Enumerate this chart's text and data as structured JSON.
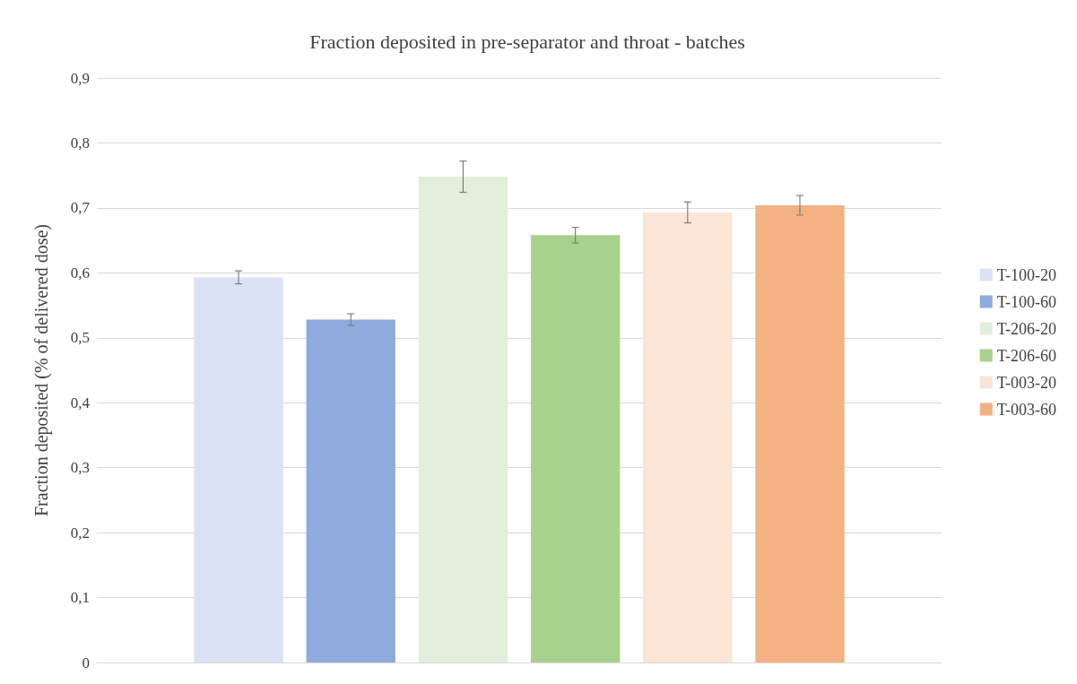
{
  "chart_data": {
    "type": "bar",
    "title": "Fraction deposited in pre-separator and throat - batches",
    "ylabel": "Fraction deposited (% of delivered dose)",
    "categories": [
      null
    ],
    "series": [
      {
        "name": "T-100-20",
        "color": "#dae3f3",
        "values": [
          0.593
        ],
        "errors": [
          0.01
        ]
      },
      {
        "name": "T-100-60",
        "color": "#8faadc",
        "values": [
          0.528
        ],
        "errors": [
          0.009
        ]
      },
      {
        "name": "T-206-20",
        "color": "#e2efda",
        "values": [
          0.748
        ],
        "errors": [
          0.024
        ]
      },
      {
        "name": "T-206-60",
        "color": "#a9d18e",
        "values": [
          0.658
        ],
        "errors": [
          0.012
        ]
      },
      {
        "name": "T-003-20",
        "color": "#fbe5d6",
        "values": [
          0.693
        ],
        "errors": [
          0.016
        ]
      },
      {
        "name": "T-003-60",
        "color": "#f4b183",
        "values": [
          0.704
        ],
        "errors": [
          0.015
        ]
      }
    ],
    "ylim": [
      0,
      0.9
    ],
    "yticks": [
      0,
      {
        "value": 0.1,
        "label": "0,1"
      },
      {
        "value": 0.2,
        "label": "0,2"
      },
      {
        "value": 0.3,
        "label": "0,3"
      },
      {
        "value": 0.4,
        "label": "0,4"
      },
      {
        "value": 0.5,
        "label": "0,5"
      },
      {
        "value": 0.6,
        "label": "0,6"
      },
      {
        "value": 0.7,
        "label": "0,7"
      },
      {
        "value": 0.8,
        "label": "0,8"
      },
      {
        "value": 0.9,
        "label": "0,9"
      }
    ],
    "grid": "y",
    "legend": "right",
    "tick_labels": "y"
  }
}
